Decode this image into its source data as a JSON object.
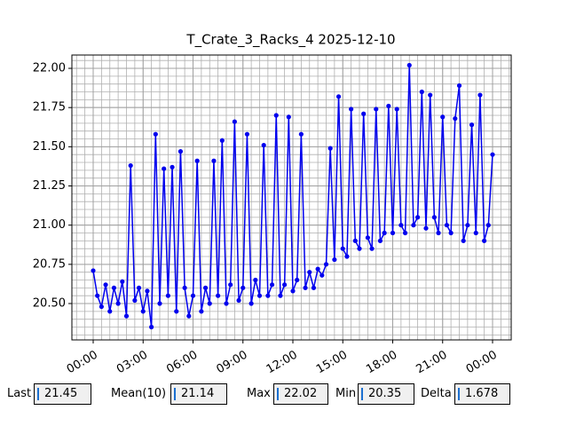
{
  "chart_data": {
    "type": "line",
    "title": "T_Crate_3_Racks_4 2025-12-10",
    "x": [
      0,
      0.25,
      0.5,
      0.75,
      1,
      1.25,
      1.5,
      1.75,
      2,
      2.25,
      2.5,
      2.75,
      3,
      3.25,
      3.5,
      3.75,
      4,
      4.25,
      4.5,
      4.75,
      5,
      5.25,
      5.5,
      5.75,
      6,
      6.25,
      6.5,
      6.75,
      7,
      7.25,
      7.5,
      7.75,
      8,
      8.25,
      8.5,
      8.75,
      9,
      9.25,
      9.5,
      9.75,
      10,
      10.25,
      10.5,
      10.75,
      11,
      11.25,
      11.5,
      11.75,
      12,
      12.25,
      12.5,
      12.75,
      13,
      13.25,
      13.5,
      13.75,
      14,
      14.25,
      14.5,
      14.75,
      15,
      15.25,
      15.5,
      15.75,
      16,
      16.25,
      16.5,
      16.75,
      17,
      17.25,
      17.5,
      17.75,
      18,
      18.25,
      18.5,
      18.75,
      19,
      19.25,
      19.5,
      19.75,
      20,
      20.25,
      20.5,
      20.75,
      21,
      21.25,
      21.5,
      21.75,
      22,
      22.25,
      22.5,
      22.75,
      23,
      23.25,
      23.5,
      23.75,
      24
    ],
    "series": [
      {
        "color": "#0000ee",
        "values": [
          20.71,
          20.55,
          20.48,
          20.62,
          20.45,
          20.6,
          20.5,
          20.64,
          20.42,
          21.38,
          20.52,
          20.6,
          20.45,
          20.58,
          20.35,
          21.58,
          20.5,
          21.36,
          20.55,
          21.37,
          20.45,
          21.47,
          20.6,
          20.42,
          20.55,
          21.41,
          20.45,
          20.6,
          20.5,
          21.41,
          20.55,
          21.54,
          20.5,
          20.62,
          21.66,
          20.52,
          20.6,
          21.58,
          20.5,
          20.65,
          20.55,
          21.51,
          20.55,
          20.62,
          21.7,
          20.55,
          20.62,
          21.69,
          20.58,
          20.65,
          21.58,
          20.6,
          20.7,
          20.6,
          20.72,
          20.68,
          20.75,
          21.49,
          20.78,
          21.82,
          20.85,
          20.8,
          21.74,
          20.9,
          20.85,
          21.71,
          20.92,
          20.85,
          21.74,
          20.9,
          20.95,
          21.76,
          20.95,
          21.74,
          21.0,
          20.95,
          22.02,
          21.0,
          21.05,
          21.85,
          20.98,
          21.83,
          21.05,
          20.95,
          21.69,
          21.0,
          20.95,
          21.68,
          21.89,
          20.9,
          21.0,
          21.64,
          20.95,
          21.83,
          20.9,
          21.0,
          21.45
        ]
      }
    ],
    "xlim": [
      -1.28,
      25.12
    ],
    "xticks": [
      {
        "value": 0,
        "label": "00:00"
      },
      {
        "value": 3,
        "label": "03:00"
      },
      {
        "value": 6,
        "label": "06:00"
      },
      {
        "value": 9,
        "label": "09:00"
      },
      {
        "value": 12,
        "label": "12:00"
      },
      {
        "value": 15,
        "label": "15:00"
      },
      {
        "value": 18,
        "label": "18:00"
      },
      {
        "value": 21,
        "label": "21:00"
      },
      {
        "value": 24,
        "label": "00:00"
      }
    ],
    "ylim": [
      20.268,
      22.085
    ],
    "yticks": [
      {
        "value": 20.5,
        "label": "20.50"
      },
      {
        "value": 20.75,
        "label": "20.75"
      },
      {
        "value": 21,
        "label": "21.00"
      },
      {
        "value": 21.25,
        "label": "21.25"
      },
      {
        "value": 21.5,
        "label": "21.50"
      },
      {
        "value": 21.75,
        "label": "21.75"
      },
      {
        "value": 22,
        "label": "22.00"
      }
    ],
    "grid": true
  },
  "footer": [
    {
      "label": "Last",
      "value": "21.45"
    },
    {
      "label": "Mean(10)",
      "value": "21.14"
    },
    {
      "label": "Max",
      "value": "22.02"
    },
    {
      "label": "Min",
      "value": "20.35"
    },
    {
      "label": "Delta",
      "value": "1.678"
    }
  ]
}
